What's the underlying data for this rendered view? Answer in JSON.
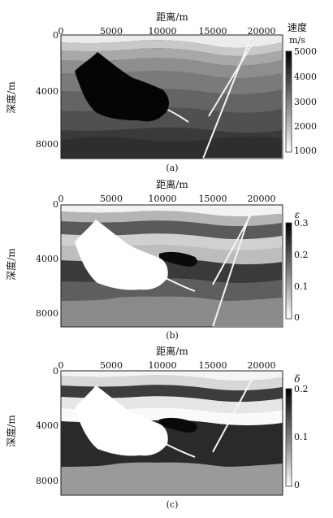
{
  "panels": [
    {
      "id": "a",
      "x_axis_title": "距离/m",
      "y_axis_title": "深度/m",
      "x_ticks": [
        "0",
        "5000",
        "10000",
        "15000",
        "20000"
      ],
      "y_ticks": [
        "0",
        "4000",
        "8000"
      ],
      "colorbar": {
        "title": [
          "速度",
          "m/s"
        ],
        "ticks": [
          "5000",
          "4000",
          "3000",
          "2000",
          "1000"
        ]
      },
      "caption": "(a)"
    },
    {
      "id": "b",
      "x_axis_title": "距离/m",
      "y_axis_title": "深度/m",
      "x_ticks": [
        "0",
        "5000",
        "10000",
        "15000",
        "20000"
      ],
      "y_ticks": [
        "0",
        "4000",
        "8000"
      ],
      "colorbar": {
        "title": [
          "ε"
        ],
        "ticks": [
          "0.3",
          "0.2",
          "0.1",
          "0"
        ]
      },
      "caption": "(b)"
    },
    {
      "id": "c",
      "x_axis_title": "距离/m",
      "y_axis_title": "深度/m",
      "x_ticks": [
        "0",
        "5000",
        "10000",
        "15000",
        "20000"
      ],
      "y_ticks": [
        "0",
        "4000",
        "8000"
      ],
      "colorbar": {
        "title": [
          "δ"
        ],
        "ticks": [
          "0.2",
          "0.1",
          "0"
        ]
      },
      "caption": "(c)"
    }
  ]
}
